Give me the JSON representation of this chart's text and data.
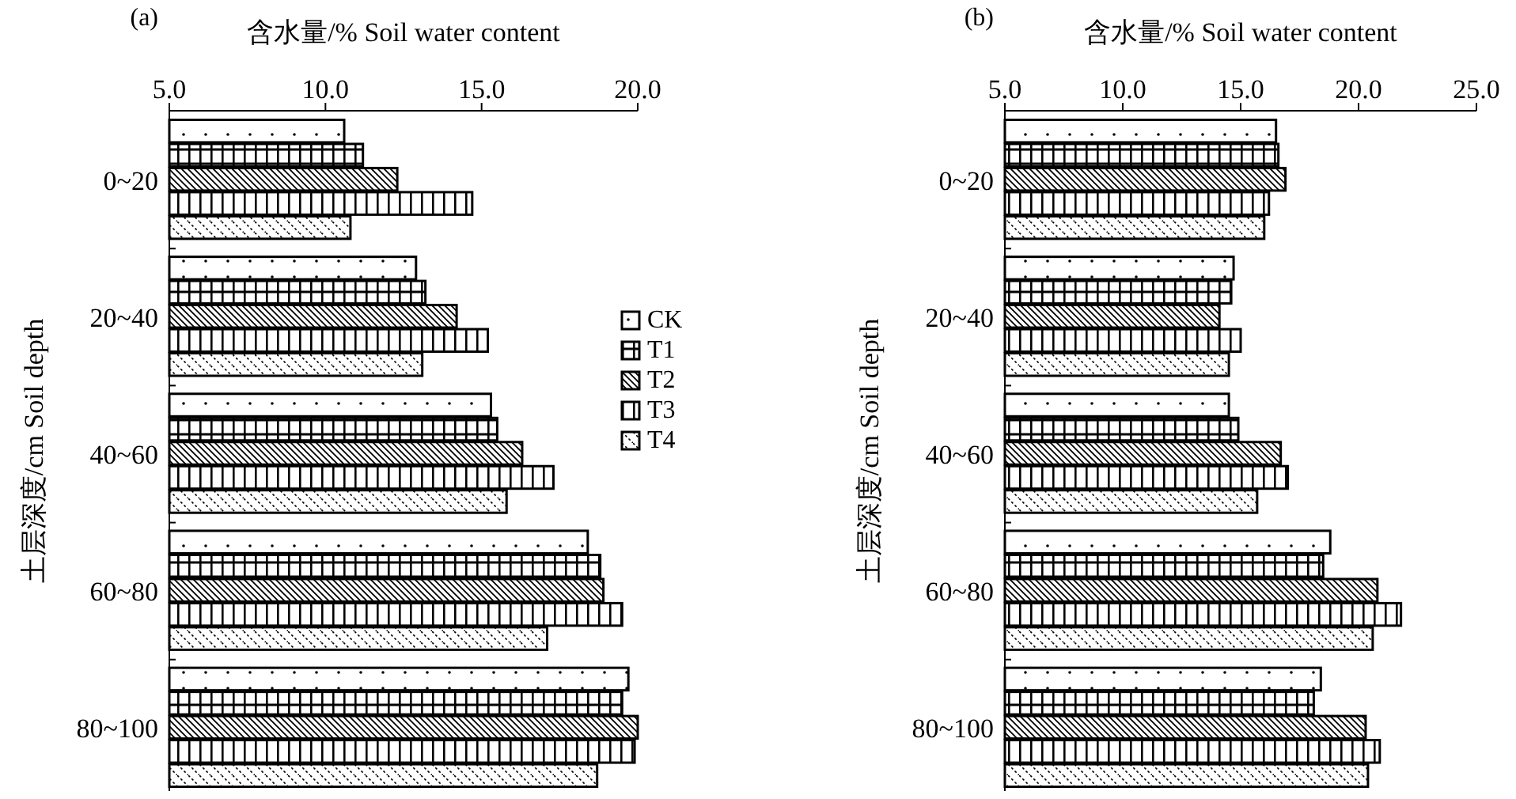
{
  "chart_data": [
    {
      "type": "bar",
      "orientation": "horizontal",
      "title": "(a)",
      "xlabel": "含水量/% Soil water content",
      "ylabel": "土层深度/cm Soil depth",
      "categories": [
        "0~20",
        "20~40",
        "40~60",
        "60~80",
        "80~100"
      ],
      "xlim": [
        5,
        20
      ],
      "xticks": [
        {
          "value": 5,
          "label": "5.0"
        },
        {
          "value": 10,
          "label": "10.0"
        },
        {
          "value": 15,
          "label": "15.0"
        },
        {
          "value": 20,
          "label": "20.0"
        }
      ],
      "legend": "right",
      "grid": false,
      "series": [
        {
          "name": "CK",
          "color": "#000000",
          "values": [
            10.6,
            12.9,
            15.3,
            18.4,
            19.7
          ]
        },
        {
          "name": "T1",
          "color": "#000000",
          "values": [
            11.2,
            13.2,
            15.5,
            18.8,
            19.5
          ]
        },
        {
          "name": "T2",
          "color": "#000000",
          "values": [
            12.3,
            14.2,
            16.3,
            18.9,
            20.0
          ]
        },
        {
          "name": "T3",
          "color": "#000000",
          "values": [
            14.7,
            15.2,
            17.3,
            19.5,
            19.9
          ]
        },
        {
          "name": "T4",
          "color": "#000000",
          "values": [
            10.8,
            13.1,
            15.8,
            17.1,
            18.7
          ]
        }
      ]
    },
    {
      "type": "bar",
      "orientation": "horizontal",
      "title": "(b)",
      "xlabel": "含水量/% Soil water content",
      "ylabel": "土层深度/cm Soil depth",
      "categories": [
        "0~20",
        "20~40",
        "40~60",
        "60~80",
        "80~100"
      ],
      "xlim": [
        5,
        25
      ],
      "xticks": [
        {
          "value": 5,
          "label": "5.0"
        },
        {
          "value": 10,
          "label": "10.0"
        },
        {
          "value": 15,
          "label": "15.0"
        },
        {
          "value": 20,
          "label": "20.0"
        },
        {
          "value": 25,
          "label": "25.0"
        }
      ],
      "grid": false,
      "series": [
        {
          "color": "#000000",
          "values": [
            16.5,
            14.7,
            14.5,
            18.8,
            18.4
          ]
        },
        {
          "color": "#000000",
          "values": [
            16.6,
            14.6,
            14.9,
            18.5,
            18.1
          ]
        },
        {
          "color": "#000000",
          "values": [
            16.9,
            14.1,
            16.7,
            20.8,
            20.3
          ]
        },
        {
          "color": "#000000",
          "values": [
            16.2,
            15.0,
            17.0,
            21.8,
            20.9
          ]
        },
        {
          "color": "#000000",
          "values": [
            16.0,
            14.5,
            15.7,
            20.6,
            20.4
          ]
        }
      ]
    }
  ]
}
